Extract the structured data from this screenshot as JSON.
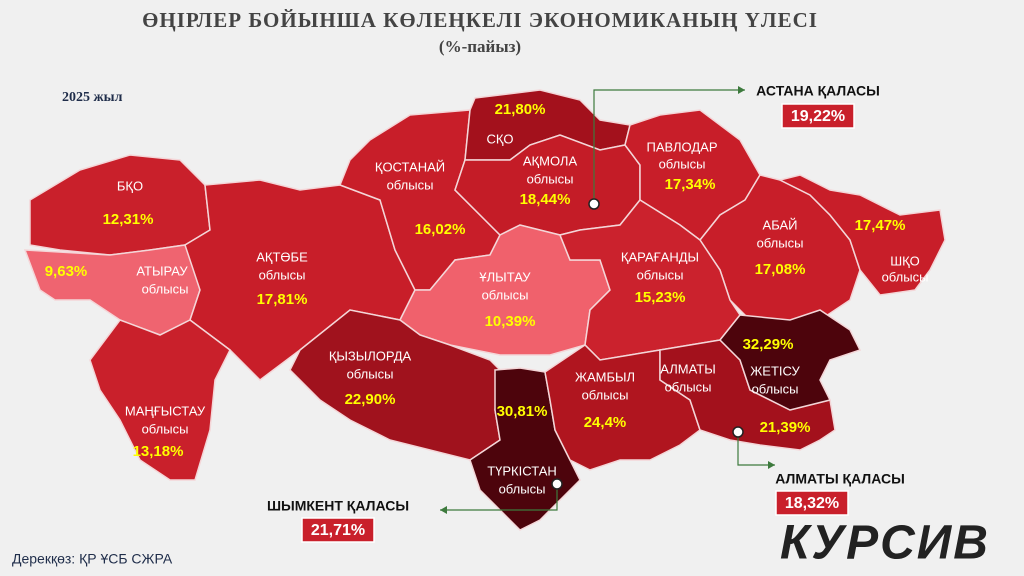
{
  "title": "ӨҢІРЛЕР БОЙЫНША КӨЛЕҢКЕЛІ ЭКОНОМИКАНЫҢ ҮЛЕСІ",
  "subtitle": "(%-пайыз)",
  "year": "2025 жыл",
  "source": "Дерекқөз: ҚР ҰСБ СЖРА",
  "logo": "КУРСИВ",
  "regions": [
    {
      "name": [
        "БҚО"
      ],
      "value": 12.31,
      "value_label": "12,31%",
      "color": "#c9202b"
    },
    {
      "name": [
        "АТЫРАУ",
        "облысы"
      ],
      "value": 9.63,
      "value_label": "9,63%",
      "color": "#ef6470"
    },
    {
      "name": [
        "АҚТӨБЕ",
        "облысы"
      ],
      "value": 17.81,
      "value_label": "17,81%",
      "color": "#c81e29"
    },
    {
      "name": [
        "МАҢҒЫСТАУ",
        "облысы"
      ],
      "value": 13.18,
      "value_label": "13,18%",
      "color": "#c9202b"
    },
    {
      "name": [
        "ҚОСТАНАЙ",
        "облысы"
      ],
      "value": 16.02,
      "value_label": "16,02%",
      "color": "#c81e29"
    },
    {
      "name": [
        "СҚО"
      ],
      "value": 21.8,
      "value_label": "21,80%",
      "color": "#a3111c"
    },
    {
      "name": [
        "АҚМОЛА",
        "облысы"
      ],
      "value": 18.44,
      "value_label": "18,44%",
      "color": "#c41c27"
    },
    {
      "name": [
        "ПАВЛОДАР",
        "облысы"
      ],
      "value": 17.34,
      "value_label": "17,34%",
      "color": "#c81e29"
    },
    {
      "name": [
        "АБАЙ",
        "облысы"
      ],
      "value": 17.08,
      "value_label": "17,08%",
      "color": "#c81e29"
    },
    {
      "name": [
        "ШҚО",
        "облысы"
      ],
      "value": 17.47,
      "value_label": "17,47%",
      "color": "#c81e29"
    },
    {
      "name": [
        "ҰЛЫТАУ",
        "облысы"
      ],
      "value": 10.39,
      "value_label": "10,39%",
      "color": "#f0616c"
    },
    {
      "name": [
        "ҚАРАҒАНДЫ",
        "облысы"
      ],
      "value": 15.23,
      "value_label": "15,23%",
      "color": "#cb222d"
    },
    {
      "name": [
        "ҚЫЗЫЛОРДА",
        "облысы"
      ],
      "value": 22.9,
      "value_label": "22,90%",
      "color": "#a0121d"
    },
    {
      "name": [
        "ТҮРКІСТАН",
        "облысы"
      ],
      "value": 30.81,
      "value_label": "30,81%",
      "color": "#4d040c"
    },
    {
      "name": [
        "ЖАМБЫЛ",
        "облысы"
      ],
      "value": 24.4,
      "value_label": "24,4%",
      "color": "#b0151f"
    },
    {
      "name": [
        "АЛМАТЫ",
        "облысы"
      ],
      "value": 21.39,
      "value_label": "21,39%",
      "color": "#a3111c"
    },
    {
      "name": [
        "ЖЕТІСУ",
        "облысы"
      ],
      "value": 32.29,
      "value_label": "32,29%",
      "color": "#4d040c"
    }
  ],
  "cities": [
    {
      "name": "АСТАНА ҚАЛАСЫ",
      "value": 19.22,
      "value_label": "19,22%"
    },
    {
      "name": "АЛМАТЫ ҚАЛАСЫ",
      "value": 18.32,
      "value_label": "18,32%"
    },
    {
      "name": "ШЫМКЕНТ ҚАЛАСЫ",
      "value": 21.71,
      "value_label": "21,71%"
    }
  ]
}
